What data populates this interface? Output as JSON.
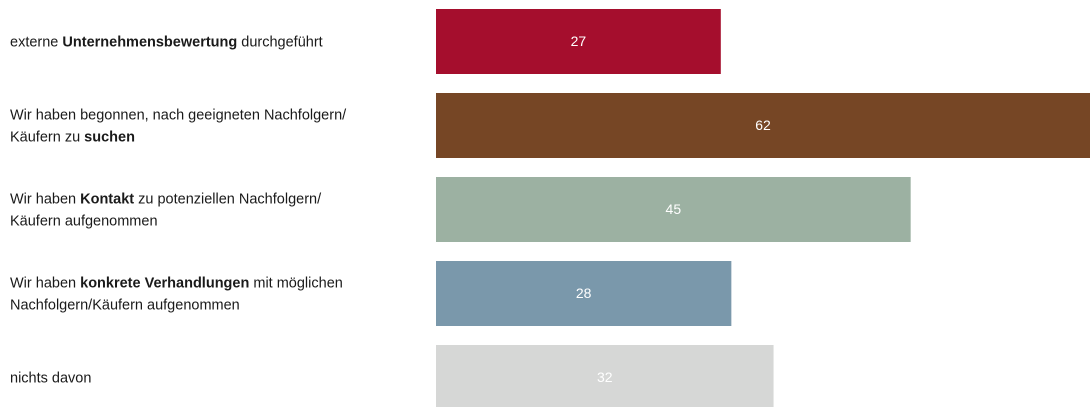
{
  "chart_data": {
    "type": "bar",
    "orientation": "horizontal",
    "title": "",
    "xlabel": "",
    "ylabel": "",
    "xlim": [
      0,
      62
    ],
    "grid": false,
    "legend": "none",
    "categories": [
      "externe Unternehmensbewertung durchgeführt",
      "Wir haben begonnen, nach geeigneten Nachfolgern/ Käufern zu suchen",
      "Wir haben Kontakt zu potenziellen Nachfolgern/ Käufern aufgenommen",
      "Wir haben konkrete Verhandlungen mit möglichen Nachfolgern/Käufern aufgenommen",
      "nichts davon"
    ],
    "category_label_lines": [
      [
        [
          {
            "text": "externe ",
            "bold": false
          },
          {
            "text": "Unternehmensbewertung",
            "bold": true
          },
          {
            "text": " durchgeführt",
            "bold": false
          }
        ]
      ],
      [
        [
          {
            "text": "Wir haben begonnen, nach geeigneten Nachfolgern/",
            "bold": false
          }
        ],
        [
          {
            "text": "Käufern zu ",
            "bold": false
          },
          {
            "text": "suchen",
            "bold": true
          }
        ]
      ],
      [
        [
          {
            "text": "Wir haben ",
            "bold": false
          },
          {
            "text": "Kontakt",
            "bold": true
          },
          {
            "text": " zu potenziellen Nachfolgern/",
            "bold": false
          }
        ],
        [
          {
            "text": "Käufern aufgenommen",
            "bold": false
          }
        ]
      ],
      [
        [
          {
            "text": "Wir haben ",
            "bold": false
          },
          {
            "text": "konkrete Verhandlungen",
            "bold": true
          },
          {
            "text": " mit möglichen",
            "bold": false
          }
        ],
        [
          {
            "text": "Nachfolgern/Käufern aufgenommen",
            "bold": false
          }
        ]
      ],
      [
        [
          {
            "text": "nichts davon",
            "bold": false
          }
        ]
      ]
    ],
    "values": [
      27,
      62,
      45,
      28,
      32
    ],
    "value_labels": [
      "27",
      "62",
      "45",
      "28",
      "32"
    ],
    "colors": [
      "#a50e2d",
      "#764625",
      "#9cb1a2",
      "#7a98ab",
      "#d6d7d6"
    ]
  }
}
